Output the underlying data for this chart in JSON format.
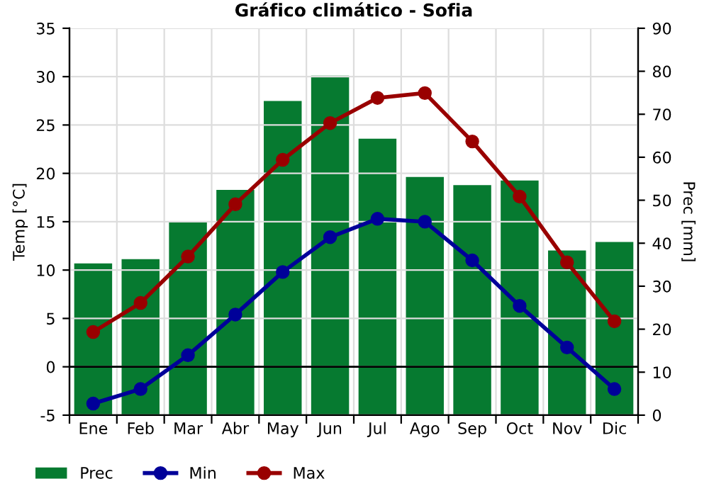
{
  "chart_data": {
    "type": "bar",
    "title": "Gráfico climático - Sofia",
    "ylabel": "Temp [°C]",
    "y2label": "Prec [mm]",
    "categories": [
      "Ene",
      "Feb",
      "Mar",
      "Abr",
      "May",
      "Jun",
      "Jul",
      "Ago",
      "Sep",
      "Oct",
      "Nov",
      "Dic"
    ],
    "series": [
      {
        "name": "Prec",
        "axis": "y2",
        "color": "#067a30",
        "values": [
          35.3,
          36.3,
          45.1,
          52.4,
          73.1,
          79.0,
          64.3,
          55.4,
          53.5,
          54.6,
          38.3,
          40.3
        ]
      },
      {
        "name": "Min",
        "type": "line",
        "color": "#000099",
        "marker": "circle",
        "values": [
          -3.8,
          -2.3,
          1.2,
          5.4,
          9.8,
          13.4,
          15.3,
          15.0,
          11.0,
          6.3,
          2.0,
          -2.3
        ]
      },
      {
        "name": "Max",
        "type": "line",
        "color": "#990000",
        "marker": "circle",
        "values": [
          3.6,
          6.6,
          11.4,
          16.8,
          21.4,
          25.2,
          27.8,
          28.3,
          23.3,
          17.6,
          10.8,
          4.7
        ]
      }
    ],
    "ylim": [
      -5,
      35
    ],
    "yticks": [
      -5,
      0,
      5,
      10,
      15,
      20,
      25,
      30,
      35
    ],
    "y2lim": [
      0,
      90
    ],
    "y2ticks": [
      0,
      10,
      20,
      30,
      40,
      50,
      60,
      70,
      80,
      90
    ],
    "ref_lines": [
      {
        "axis": "y",
        "value": 0,
        "color": "#000000"
      }
    ],
    "grid": true,
    "legend": "bottom"
  }
}
